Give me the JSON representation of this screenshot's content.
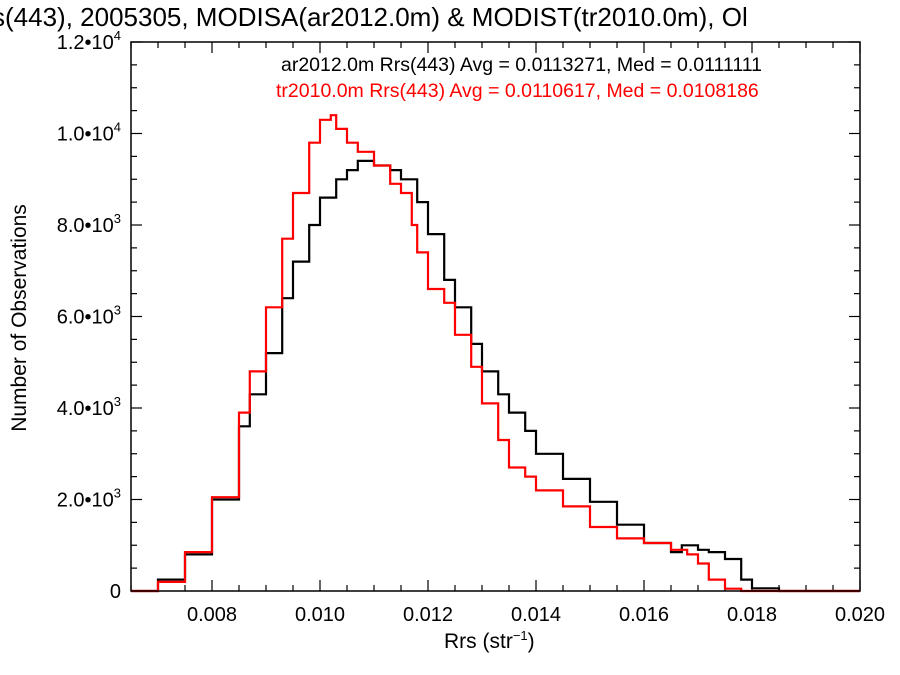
{
  "chart_data": {
    "type": "line",
    "title": "s(443), 2005305, MODISA(ar2012.0m) & MODIST(tr2010.0m), Ol",
    "xlabel": "Rrs (str",
    "xlabel_sup": "−1",
    "xlabel_close": ")",
    "ylabel": "Number of Observations",
    "xlim": [
      0.0065,
      0.02
    ],
    "ylim": [
      0,
      12000
    ],
    "grid": false,
    "legend_placement": "top-right",
    "x_ticks": [
      {
        "value": 0.008,
        "label": "0.008"
      },
      {
        "value": 0.01,
        "label": "0.010"
      },
      {
        "value": 0.012,
        "label": "0.012"
      },
      {
        "value": 0.014,
        "label": "0.014"
      },
      {
        "value": 0.016,
        "label": "0.016"
      },
      {
        "value": 0.018,
        "label": "0.018"
      },
      {
        "value": 0.02,
        "label": "0.020"
      }
    ],
    "y_ticks": [
      {
        "value": 0,
        "mant": "0",
        "exp": ""
      },
      {
        "value": 2000,
        "mant": "2.0•10",
        "exp": "3"
      },
      {
        "value": 4000,
        "mant": "4.0•10",
        "exp": "3"
      },
      {
        "value": 6000,
        "mant": "6.0•10",
        "exp": "3"
      },
      {
        "value": 8000,
        "mant": "8.0•10",
        "exp": "3"
      },
      {
        "value": 10000,
        "mant": "1.0•10",
        "exp": "4"
      },
      {
        "value": 12000,
        "mant": "1.2•10",
        "exp": "4"
      }
    ],
    "series": [
      {
        "name": "ar2012.0m Rrs(443) Avg = 0.0113271, Med = 0.0111111",
        "color": "#000000",
        "x": [
          0.0065,
          0.007,
          0.0075,
          0.008,
          0.0085,
          0.0087,
          0.009,
          0.0093,
          0.0095,
          0.0098,
          0.01,
          0.0103,
          0.0105,
          0.0107,
          0.011,
          0.0113,
          0.0115,
          0.0118,
          0.012,
          0.0123,
          0.0125,
          0.0128,
          0.013,
          0.0133,
          0.0135,
          0.0138,
          0.014,
          0.0145,
          0.015,
          0.0155,
          0.016,
          0.0165,
          0.0167,
          0.017,
          0.0172,
          0.0175,
          0.0178,
          0.018,
          0.0185,
          0.019,
          0.02
        ],
        "y": [
          0,
          250,
          800,
          2000,
          3600,
          4300,
          5200,
          6400,
          7200,
          8000,
          8600,
          9000,
          9200,
          9400,
          9300,
          9200,
          9000,
          8500,
          7800,
          6800,
          6200,
          5400,
          4800,
          4300,
          3900,
          3500,
          3000,
          2450,
          1950,
          1450,
          1050,
          850,
          1000,
          900,
          850,
          700,
          250,
          60,
          0,
          0,
          0
        ]
      },
      {
        "name": "tr2010.0m Rrs(443) Avg = 0.0110617, Med = 0.0108186",
        "color": "#ff0000",
        "x": [
          0.0065,
          0.007,
          0.0075,
          0.008,
          0.0085,
          0.0087,
          0.009,
          0.0093,
          0.0095,
          0.0098,
          0.01,
          0.0102,
          0.0103,
          0.0105,
          0.0107,
          0.011,
          0.0113,
          0.0115,
          0.0117,
          0.0118,
          0.012,
          0.0123,
          0.0125,
          0.0128,
          0.013,
          0.0133,
          0.0135,
          0.0138,
          0.014,
          0.0145,
          0.015,
          0.0155,
          0.016,
          0.0165,
          0.0168,
          0.017,
          0.0172,
          0.0175,
          0.0178,
          0.018,
          0.019,
          0.02
        ],
        "y": [
          0,
          200,
          850,
          2050,
          3900,
          4800,
          6200,
          7700,
          8700,
          9800,
          10300,
          10400,
          10100,
          9800,
          9600,
          9300,
          8900,
          8700,
          8000,
          7400,
          6600,
          6300,
          5600,
          4900,
          4100,
          3300,
          2700,
          2500,
          2200,
          1850,
          1400,
          1150,
          1050,
          900,
          800,
          600,
          250,
          50,
          0,
          0,
          0,
          0
        ]
      }
    ]
  }
}
